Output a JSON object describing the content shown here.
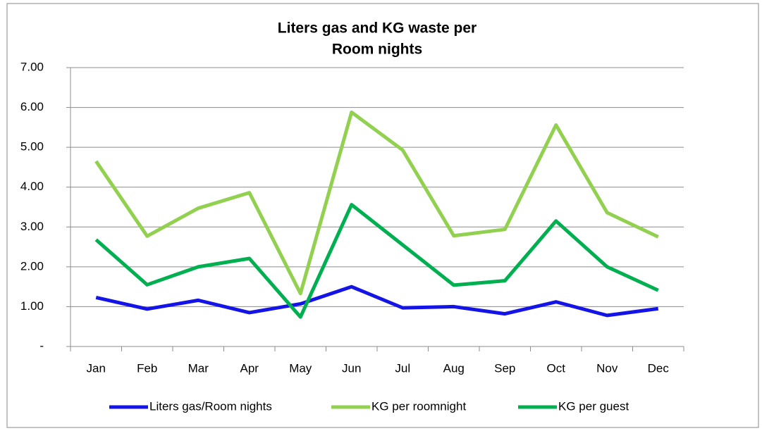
{
  "chart_data": {
    "type": "line",
    "title": [
      "Liters gas and KG waste per",
      "Room nights"
    ],
    "categories": [
      "Jan",
      "Feb",
      "Mar",
      "Apr",
      "May",
      "Jun",
      "Jul",
      "Aug",
      "Sep",
      "Oct",
      "Nov",
      "Dec"
    ],
    "series": [
      {
        "name": "Liters gas/Room nights",
        "color": "#1414e6",
        "values": [
          1.23,
          0.94,
          1.16,
          0.85,
          1.07,
          1.5,
          0.97,
          1.0,
          0.82,
          1.12,
          0.78,
          0.95
        ]
      },
      {
        "name": "KG per roomnight",
        "color": "#92d050",
        "values": [
          4.65,
          2.77,
          3.47,
          3.86,
          1.33,
          5.88,
          4.93,
          2.78,
          2.94,
          5.56,
          3.36,
          2.75
        ]
      },
      {
        "name": "KG per guest",
        "color": "#00b050",
        "values": [
          2.68,
          1.55,
          2.0,
          2.21,
          0.74,
          3.56,
          2.55,
          1.54,
          1.65,
          3.15,
          2.0,
          1.41
        ]
      }
    ],
    "ylim": [
      0,
      7
    ],
    "yticks": [
      {
        "value": 0,
        "label": "-"
      },
      {
        "value": 1,
        "label": "1.00"
      },
      {
        "value": 2,
        "label": "2.00"
      },
      {
        "value": 3,
        "label": "3.00"
      },
      {
        "value": 4,
        "label": "4.00"
      },
      {
        "value": 5,
        "label": "5.00"
      },
      {
        "value": 6,
        "label": "6.00"
      },
      {
        "value": 7,
        "label": "7.00"
      }
    ],
    "grid": true,
    "legend": "bottom"
  }
}
